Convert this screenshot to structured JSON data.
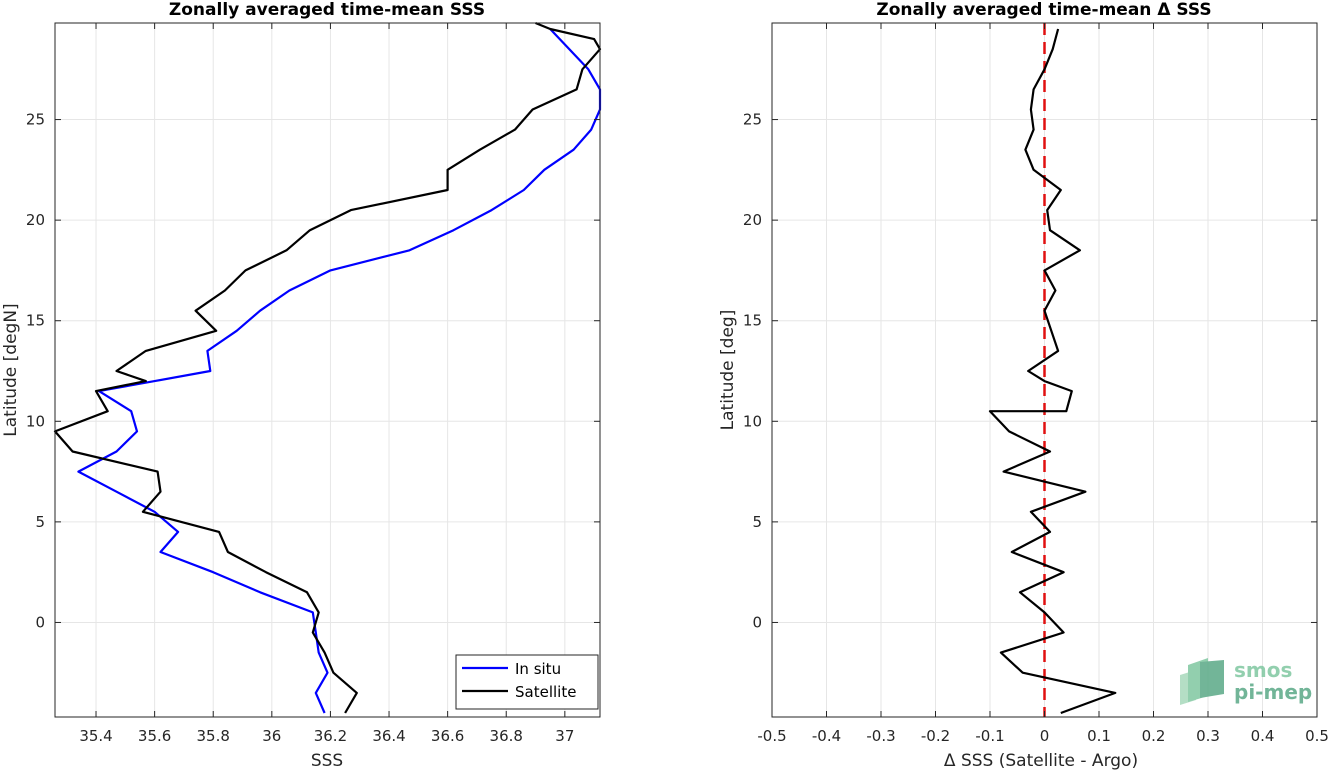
{
  "watermark": {
    "line1": "smos",
    "line2": "pi-mep",
    "colors": [
      "#7fc7a0",
      "#5aa987",
      "#a8d9bc"
    ],
    "icon": "smos-pimep-logo"
  },
  "chart_data": [
    {
      "type": "line",
      "title": "Zonally averaged time-mean SSS",
      "xlabel": "SSS",
      "ylabel": "Latitude [degN]",
      "xlim": [
        35.26,
        37.12
      ],
      "ylim": [
        -4.7,
        29.8
      ],
      "xticks": [
        35.4,
        35.6,
        35.8,
        36,
        36.2,
        36.4,
        36.6,
        36.8,
        37
      ],
      "xtick_labels": [
        "35.4",
        "35.6",
        "35.8",
        "36",
        "36.2",
        "36.4",
        "36.6",
        "36.8",
        "37"
      ],
      "yticks": [
        0,
        5,
        10,
        15,
        20,
        25
      ],
      "ytick_labels": [
        "0",
        "5",
        "10",
        "15",
        "20",
        "25"
      ],
      "grid": true,
      "legend": "bottom-right",
      "series": [
        {
          "name": "In situ",
          "color": "#0000ff",
          "x": [
            36.18,
            36.15,
            36.19,
            36.16,
            36.15,
            36.14,
            35.96,
            35.8,
            35.62,
            35.68,
            35.6,
            35.47,
            35.34,
            35.47,
            35.54,
            35.52,
            35.41,
            35.6,
            35.79,
            35.78,
            35.88,
            35.96,
            36.06,
            36.2,
            36.47,
            36.62,
            36.75,
            36.86,
            36.93,
            37.03,
            37.09,
            37.12,
            37.12,
            37.08,
            36.95
          ],
          "y": [
            -4.5,
            -3.5,
            -2.5,
            -1.5,
            -0.5,
            0.5,
            1.5,
            2.5,
            3.5,
            4.5,
            5.5,
            6.5,
            7.5,
            8.5,
            9.5,
            10.5,
            11.5,
            12.0,
            12.5,
            13.5,
            14.5,
            15.5,
            16.5,
            17.5,
            18.5,
            19.5,
            20.5,
            21.5,
            22.5,
            23.5,
            24.5,
            25.5,
            26.5,
            27.5,
            29.5
          ]
        },
        {
          "name": "Satellite",
          "color": "#000000",
          "x": [
            36.25,
            36.29,
            36.21,
            36.18,
            36.14,
            36.16,
            36.12,
            35.98,
            35.85,
            35.82,
            35.56,
            35.62,
            35.61,
            35.32,
            35.26,
            35.44,
            35.4,
            35.57,
            35.47,
            35.57,
            35.81,
            35.74,
            35.84,
            35.91,
            36.05,
            36.13,
            36.27,
            36.6,
            36.6,
            36.71,
            36.83,
            36.89,
            37.04,
            37.06,
            37.12,
            37.1,
            36.95,
            36.9
          ],
          "y": [
            -4.5,
            -3.5,
            -2.5,
            -1.5,
            -0.5,
            0.5,
            1.5,
            2.5,
            3.5,
            4.5,
            5.5,
            6.5,
            7.5,
            8.5,
            9.5,
            10.5,
            11.5,
            12.0,
            12.5,
            13.5,
            14.5,
            15.5,
            16.5,
            17.5,
            18.5,
            19.5,
            20.5,
            21.5,
            22.5,
            23.5,
            24.5,
            25.5,
            26.5,
            27.5,
            28.5,
            29.0,
            29.5,
            29.8
          ]
        }
      ]
    },
    {
      "type": "line",
      "title": "Zonally averaged time-mean Δ SSS",
      "xlabel": "Δ SSS (Satellite - Argo)",
      "ylabel": "Latitude [deg]",
      "xlim": [
        -0.5,
        0.5
      ],
      "ylim": [
        -4.7,
        29.8
      ],
      "xticks": [
        -0.5,
        -0.4,
        -0.3,
        -0.2,
        -0.1,
        0,
        0.1,
        0.2,
        0.3,
        0.4,
        0.5
      ],
      "xtick_labels": [
        "-0.5",
        "-0.4",
        "-0.3",
        "-0.2",
        "-0.1",
        "0",
        "0.1",
        "0.2",
        "0.3",
        "0.4",
        "0.5"
      ],
      "yticks": [
        0,
        5,
        10,
        15,
        20,
        25
      ],
      "ytick_labels": [
        "0",
        "5",
        "10",
        "15",
        "20",
        "25"
      ],
      "grid": true,
      "reference_line": {
        "x": 0,
        "color": "#e01010",
        "style": "dashed"
      },
      "series": [
        {
          "color": "#000000",
          "x": [
            0.03,
            0.13,
            -0.04,
            -0.08,
            0.035,
            0.0,
            -0.045,
            0.035,
            -0.06,
            0.01,
            -0.025,
            0.075,
            -0.075,
            0.01,
            -0.065,
            -0.1,
            0.04,
            0.05,
            0.0,
            -0.03,
            0.025,
            0.0,
            0.02,
            0.0,
            0.065,
            0.01,
            0.005,
            0.03,
            -0.02,
            -0.035,
            -0.02,
            -0.025,
            -0.02,
            0.0,
            0.015,
            0.025
          ],
          "y": [
            -4.5,
            -3.5,
            -2.5,
            -1.5,
            -0.5,
            0.5,
            1.5,
            2.5,
            3.5,
            4.5,
            5.5,
            6.5,
            7.5,
            8.5,
            9.5,
            10.5,
            10.5,
            11.5,
            12.0,
            12.5,
            13.5,
            15.5,
            16.5,
            17.5,
            18.5,
            19.5,
            20.5,
            21.5,
            22.5,
            23.5,
            24.5,
            25.5,
            26.5,
            27.5,
            28.5,
            29.5
          ]
        }
      ]
    }
  ]
}
